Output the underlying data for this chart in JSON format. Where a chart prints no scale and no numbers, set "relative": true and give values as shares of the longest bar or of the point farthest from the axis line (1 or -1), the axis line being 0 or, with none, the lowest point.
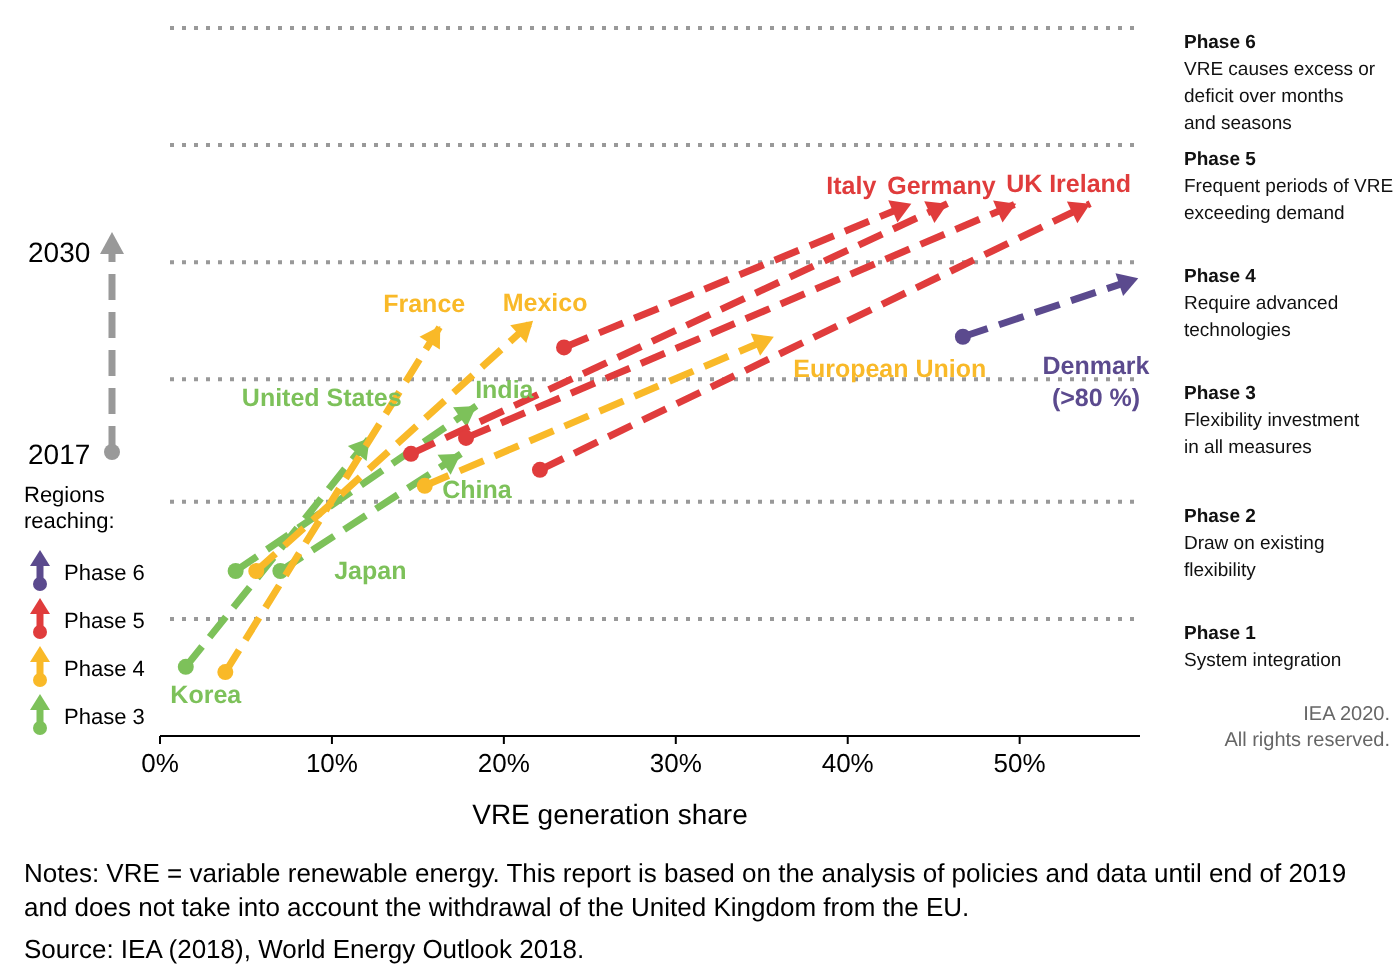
{
  "chart_data": {
    "type": "line",
    "relative": true,
    "xlabel": "VRE generation share",
    "legend_title": "Regions reaching:",
    "legend": "left",
    "line_style": "dashed",
    "marker": "circle",
    "xlim": [
      0,
      57
    ],
    "xticks": [
      {
        "value": 0,
        "label": "0%"
      },
      {
        "value": 10,
        "label": "10%"
      },
      {
        "value": 20,
        "label": "20%"
      },
      {
        "value": 30,
        "label": "30%"
      },
      {
        "value": 40,
        "label": "40%"
      },
      {
        "value": 50,
        "label": "50%"
      }
    ],
    "ref_lines": [
      {
        "axis": "y",
        "value": 1.33,
        "label": "Phase 6\nVRE causes excess or\ndeficit over months\nand seasons",
        "color": "#999999",
        "line_style": "dotted"
      },
      {
        "axis": "y",
        "value": 1.11,
        "label": "Phase 5\nFrequent periods of VRE\nexceeding demand",
        "color": "#999999",
        "line_style": "dotted"
      },
      {
        "axis": "y",
        "value": 0.89,
        "label": "Phase 4\nRequire advanced\ntechnologies",
        "color": "#999999",
        "line_style": "dotted"
      },
      {
        "axis": "y",
        "value": 0.67,
        "label": "Phase 3\nFlexibility investment\nin all measures",
        "color": "#999999",
        "line_style": "dotted"
      },
      {
        "axis": "y",
        "value": 0.44,
        "label": "Phase 2\nDraw on existing\nflexibility",
        "color": "#999999",
        "line_style": "dotted"
      },
      {
        "axis": "y",
        "value": 0.22,
        "label": "Phase 1\nSystem integration",
        "color": "#999999",
        "line_style": "dotted"
      }
    ],
    "series": [
      {
        "name": "Phase 6",
        "color": "#5b4a8e",
        "x": [
          46.7,
          56.9
        ],
        "values": [
          0.75,
          0.86
        ]
      },
      {
        "name": "Phase 5",
        "color": "#e03c3c",
        "x": [
          23.5,
          43.7,
          null,
          14.6,
          45.8,
          null,
          17.8,
          49.8,
          null,
          22.1,
          54.1
        ],
        "values": [
          0.73,
          1.0,
          null,
          0.53,
          1.0,
          null,
          0.56,
          1.0,
          null,
          0.5,
          1.0
        ]
      },
      {
        "name": "Phase 4",
        "color": "#f9b928",
        "x": [
          3.8,
          16.3,
          null,
          5.6,
          21.7,
          null,
          15.4,
          35.7
        ],
        "values": [
          0.12,
          0.77,
          null,
          0.31,
          0.78,
          null,
          0.47,
          0.75
        ]
      },
      {
        "name": "Phase 3",
        "color": "#7dc15a",
        "x": [
          1.5,
          12.2,
          null,
          4.4,
          18.4,
          null,
          7.0,
          17.5
        ],
        "values": [
          0.13,
          0.56,
          null,
          0.31,
          0.62,
          null,
          0.31,
          0.53
        ]
      }
    ],
    "annotations": [
      {
        "text": "Italy",
        "x": 43.7,
        "y": 1.0
      },
      {
        "text": "Germany",
        "x": 45.8,
        "y": 1.0
      },
      {
        "text": "UK",
        "x": 49.8,
        "y": 1.0
      },
      {
        "text": "Ireland",
        "x": 54.1,
        "y": 1.0
      },
      {
        "text": "France",
        "x": 16.3,
        "y": 0.77
      },
      {
        "text": "Mexico",
        "x": 21.7,
        "y": 0.78
      },
      {
        "text": "European Union",
        "x": 35.7,
        "y": 0.75
      },
      {
        "text": "United States",
        "x": 12.2,
        "y": 0.56
      },
      {
        "text": "India",
        "x": 18.4,
        "y": 0.62
      },
      {
        "text": "China",
        "x": 17.5,
        "y": 0.53
      },
      {
        "text": "Japan",
        "x": 7.0,
        "y": 0.31
      },
      {
        "text": "Korea",
        "x": 1.5,
        "y": 0.13
      },
      "Denmark\n(>80 %)",
      "2030",
      "2017",
      "IEA 2020.\nAll rights reserved.",
      "Notes: VRE = variable renewable energy. This report is based on the analysis of policies and data until end of 2019\nand does not take into account the withdrawal of the United Kingdom from the EU.",
      "Source: IEA (2018), World Energy Outlook 2018."
    ]
  }
}
